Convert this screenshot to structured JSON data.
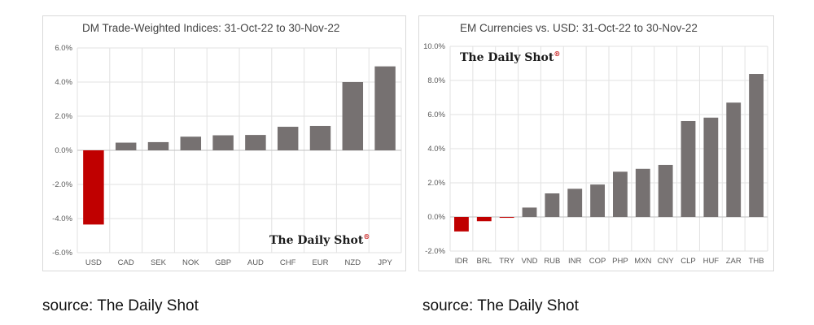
{
  "chart_data": [
    {
      "type": "bar",
      "title": "DM Trade-Weighted Indices: 31-Oct-22 to 30-Nov-22",
      "categories": [
        "USD",
        "CAD",
        "SEK",
        "NOK",
        "GBP",
        "AUD",
        "CHF",
        "EUR",
        "NZD",
        "JPY"
      ],
      "values": [
        -4.35,
        0.45,
        0.48,
        0.8,
        0.88,
        0.9,
        1.38,
        1.43,
        4.0,
        4.92
      ],
      "yticks": [
        "6.0%",
        "4.0%",
        "2.0%",
        "0.0%",
        "-2.0%",
        "-4.0%",
        "-6.0%"
      ],
      "ylim": [
        -6,
        6
      ],
      "grid": true,
      "legend": "none",
      "watermark": "The Daily Shot",
      "watermark_mark": "®",
      "colors": {
        "negative": "#c00000",
        "positive": "#767171"
      }
    },
    {
      "type": "bar",
      "title": "EM Currencies vs. USD: 31-Oct-22 to 30-Nov-22",
      "categories": [
        "IDR",
        "BRL",
        "TRY",
        "VND",
        "RUB",
        "INR",
        "COP",
        "PHP",
        "MXN",
        "CNY",
        "CLP",
        "HUF",
        "ZAR",
        "THB"
      ],
      "values": [
        -0.85,
        -0.25,
        -0.05,
        0.55,
        1.38,
        1.65,
        1.9,
        2.65,
        2.82,
        3.05,
        5.62,
        5.82,
        6.7,
        8.38
      ],
      "yticks": [
        "10.0%",
        "8.0%",
        "6.0%",
        "4.0%",
        "2.0%",
        "0.0%",
        "-2.0%"
      ],
      "ylim": [
        -2,
        10
      ],
      "grid": true,
      "legend": "none",
      "watermark": "The Daily Shot",
      "watermark_mark": "®",
      "colors": {
        "negative": "#c00000",
        "positive": "#767171"
      }
    }
  ],
  "captions": {
    "left": "source: The Daily Shot",
    "right": "source: The Daily Shot"
  }
}
